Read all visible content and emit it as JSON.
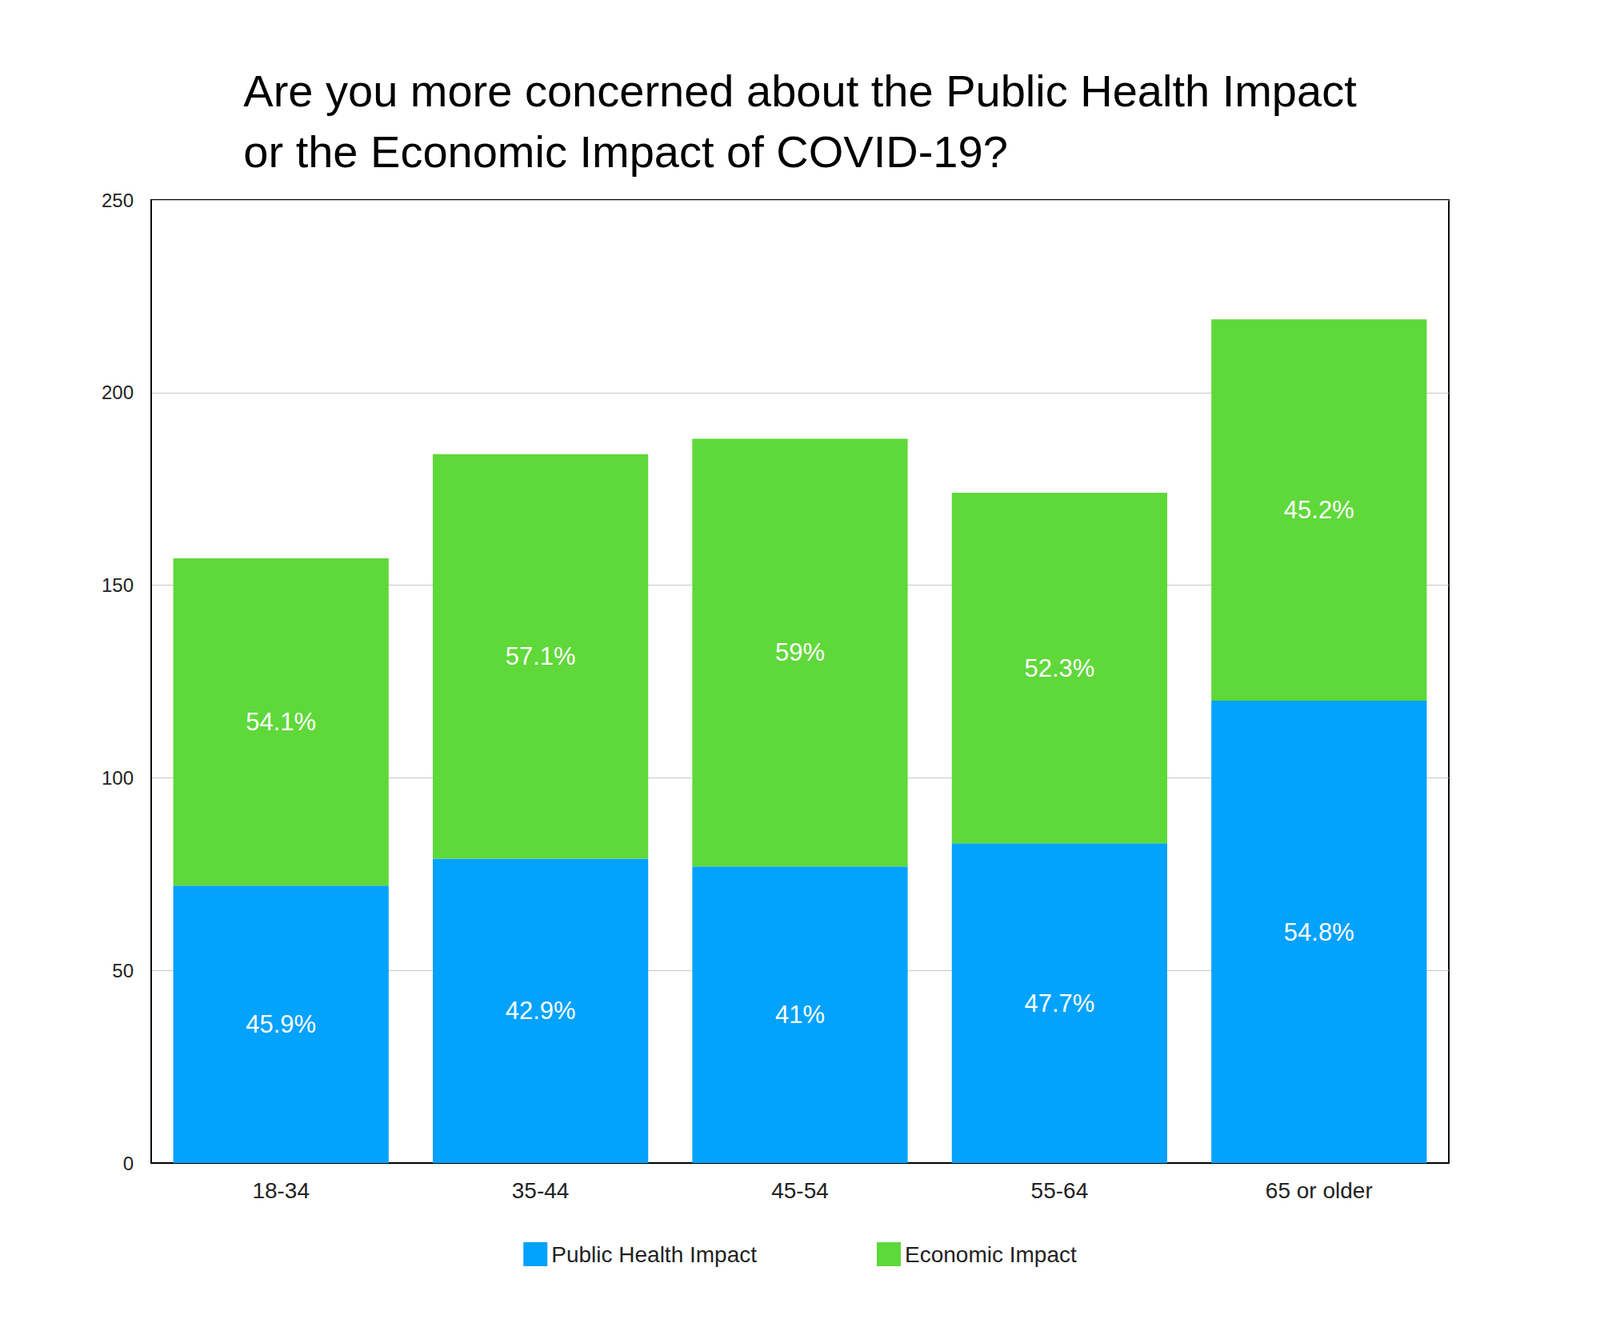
{
  "chart_data": {
    "type": "bar",
    "title": "Are you more concerned about the Public Health Impact\nor the Economic Impact of COVID-19?",
    "categories": [
      "18-34",
      "35-44",
      "45-54",
      "55-64",
      "65 or older"
    ],
    "series": [
      {
        "name": "Public Health Impact",
        "color": "#03a2fd",
        "values": [
          72,
          79,
          77,
          83,
          120
        ],
        "percent_labels": [
          "45.9%",
          "42.9%",
          "41%",
          "47.7%",
          "54.8%"
        ]
      },
      {
        "name": "Economic Impact",
        "color": "#5fd83a",
        "values": [
          85,
          105,
          111,
          91,
          99
        ],
        "percent_labels": [
          "54.1%",
          "57.1%",
          "59%",
          "52.3%",
          "45.2%"
        ]
      }
    ],
    "ylim": [
      0,
      250
    ],
    "yticks": [
      0,
      50,
      100,
      150,
      200,
      250
    ],
    "grid": true,
    "stacked": true,
    "legend": "bottom"
  }
}
